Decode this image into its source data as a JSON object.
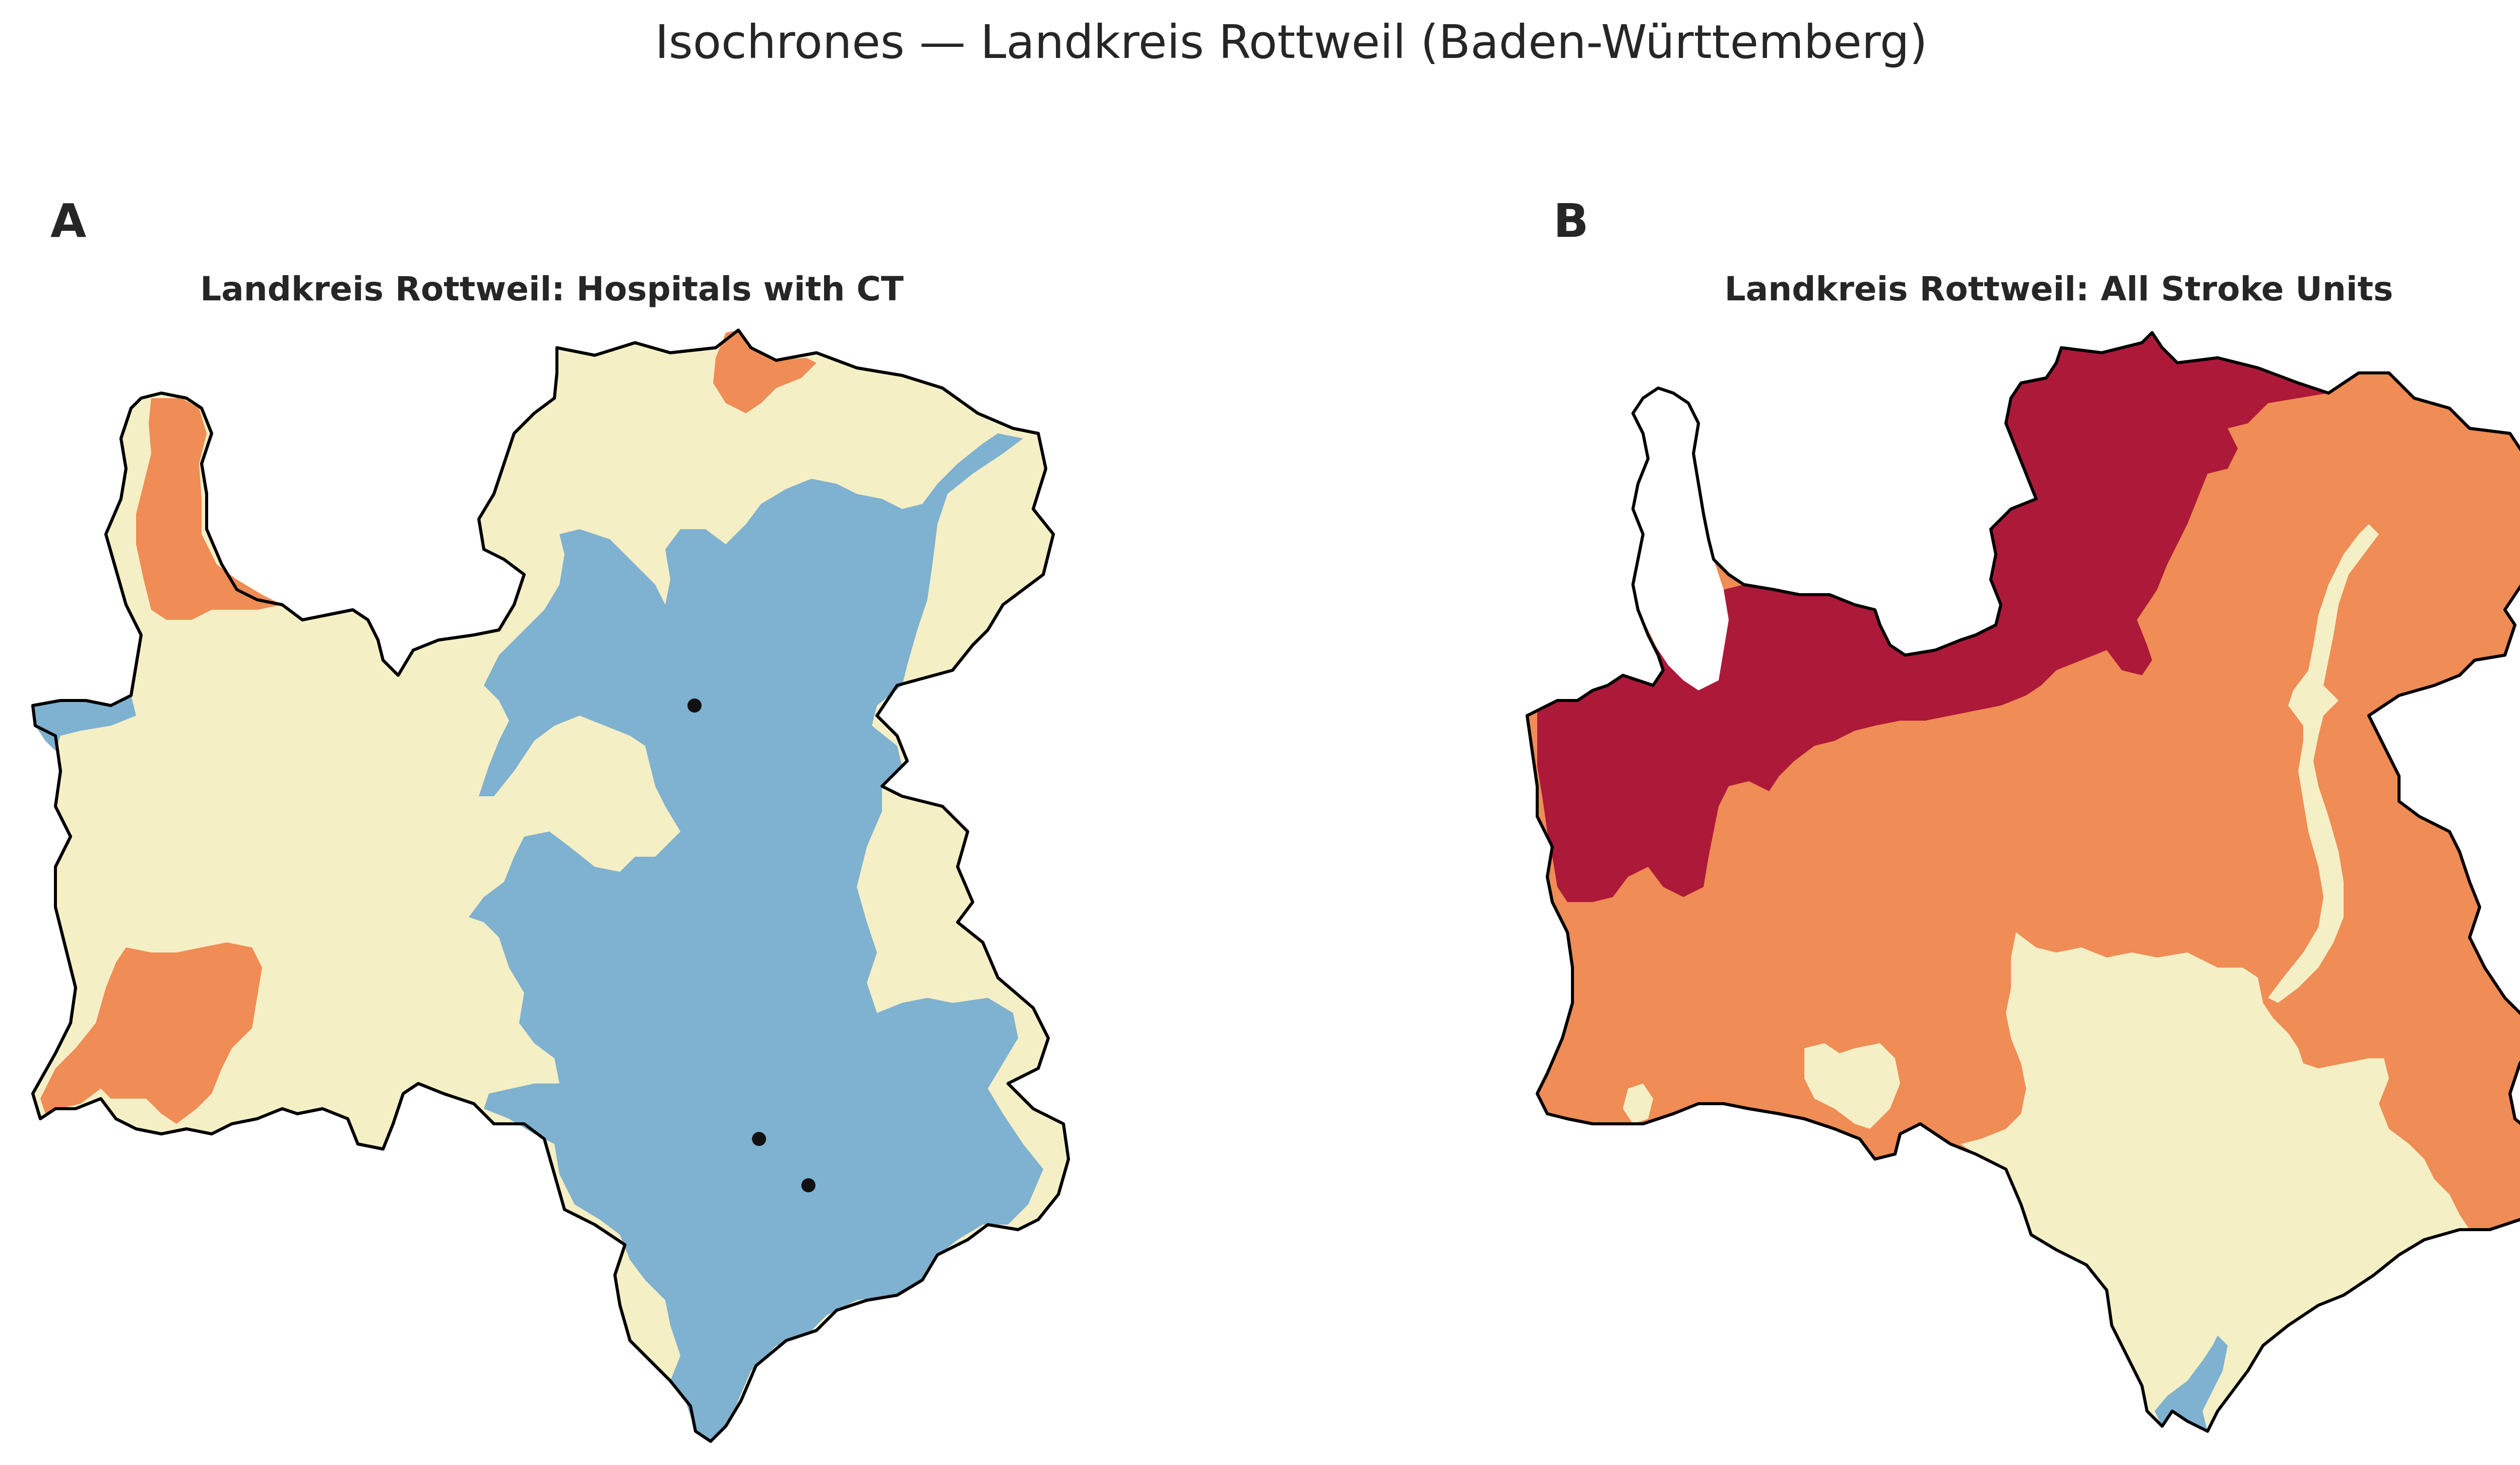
{
  "figure": {
    "suptitle": "Isochrones — Landkreis Rottweil (Baden-Württemberg)"
  },
  "panels": [
    {
      "letter": "A",
      "title": "Landkreis Rottweil: Hospitals with CT",
      "hospital_count": 3
    },
    {
      "letter": "B",
      "title": "Landkreis Rottweil: All Stroke Units"
    }
  ],
  "colors": {
    "outline": "#000000",
    "blue": "#7fb1d0",
    "cream": "#f5efc6",
    "orange": "#f08c55",
    "crimson": "#ad1939",
    "white": "#ffffff",
    "marker": "#111111"
  }
}
